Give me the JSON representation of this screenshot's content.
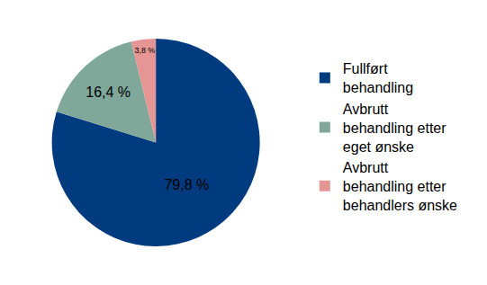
{
  "chart_data": {
    "type": "pie",
    "categories": [
      "Fullført behandling",
      "Avbrutt behandling etter eget ønske",
      "Avbrutt behandling etter behandlers ønske"
    ],
    "values": [
      79.8,
      16.4,
      3.8
    ],
    "value_labels": [
      "79,8 %",
      "16,4 %",
      "3,8 %"
    ],
    "colors": [
      "#003b7f",
      "#7fa79a",
      "#e59593"
    ],
    "data_labels": true,
    "legend": "right"
  }
}
